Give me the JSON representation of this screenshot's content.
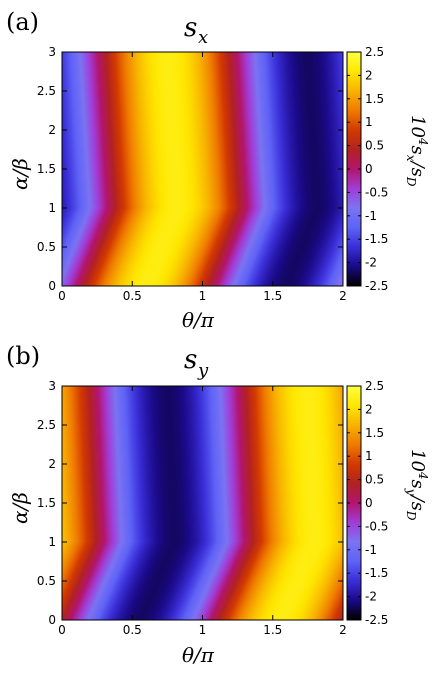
{
  "chart_data": [
    {
      "type": "heatmap",
      "panel_label": "(a)",
      "title": "s_x",
      "xlabel": "θ/π",
      "ylabel": "α/β",
      "colorbar_label": "10^4 s_x/s_D",
      "xlim": [
        0,
        2
      ],
      "ylim": [
        0,
        3
      ],
      "zlim": [
        -2.5,
        2.5
      ],
      "x_ticks": [
        "0",
        "0.5",
        "1",
        "1.5",
        "2"
      ],
      "y_ticks": [
        "0",
        "0.5",
        "1",
        "1.5",
        "2",
        "2.5",
        "3"
      ],
      "colorbar_ticks": [
        "-2.5",
        "-2",
        "-1.5",
        "-1",
        "-0.5",
        "0",
        "0.5",
        "1",
        "1.5",
        "2",
        "2.5"
      ],
      "colormap": [
        "#000000",
        "#1b0a8a",
        "#3b2fd9",
        "#5f63f7",
        "#7b74f2",
        "#a33cd7",
        "#b2156e",
        "#b22222",
        "#d33a00",
        "#f07a00",
        "#f8b200",
        "#ffe600",
        "#ffff40"
      ],
      "approx_field": "10^4 s_x/s_D ≈ 2.2·cos(π(θ/π − θ0)), θ0 ≈ 0.75 at α/β=3, 0.82 at α/β=1, shifting to 0.6 near α/β=0",
      "sample_values": [
        {
          "theta_over_pi": 0.0,
          "alpha_over_beta": 1.5,
          "value": -1.6
        },
        {
          "theta_over_pi": 0.75,
          "alpha_over_beta": 1.5,
          "value": 2.2
        },
        {
          "theta_over_pi": 1.75,
          "alpha_over_beta": 1.5,
          "value": -2.2
        },
        {
          "theta_over_pi": 0.3,
          "alpha_over_beta": 3.0,
          "value": 0.0
        },
        {
          "theta_over_pi": 1.3,
          "alpha_over_beta": 3.0,
          "value": 0.0
        },
        {
          "theta_over_pi": 0.4,
          "alpha_over_beta": 0.5,
          "value": 0.0
        },
        {
          "theta_over_pi": 1.4,
          "alpha_over_beta": 0.5,
          "value": 0.0
        }
      ]
    },
    {
      "type": "heatmap",
      "panel_label": "(b)",
      "title": "s_y",
      "xlabel": "θ/π",
      "ylabel": "α/β",
      "colorbar_label": "10^4 s_y/s_D",
      "xlim": [
        0,
        2
      ],
      "ylim": [
        0,
        3
      ],
      "zlim": [
        -2.5,
        2.5
      ],
      "x_ticks": [
        "0",
        "0.5",
        "1",
        "1.5",
        "2"
      ],
      "y_ticks": [
        "0",
        "0.5",
        "1",
        "1.5",
        "2",
        "2.5",
        "3"
      ],
      "colorbar_ticks": [
        "-2.5",
        "-2",
        "-1.5",
        "-1",
        "-0.5",
        "0",
        "0.5",
        "1",
        "1.5",
        "2",
        "2.5"
      ],
      "colormap": [
        "#000000",
        "#1b0a8a",
        "#3b2fd9",
        "#5f63f7",
        "#7b74f2",
        "#a33cd7",
        "#b2156e",
        "#b22222",
        "#d33a00",
        "#f07a00",
        "#f8b200",
        "#ffe600",
        "#ffff40"
      ],
      "approx_field": "10^4 s_y/s_D ≈ −2.2·sin(π(θ/π − θ1)), θ1 ≈ 0.25 at α/β=3, 0.3 at α/β=1, shifting toward 0.05 near α/β=0",
      "sample_values": [
        {
          "theta_over_pi": 0.0,
          "alpha_over_beta": 1.5,
          "value": 0.9
        },
        {
          "theta_over_pi": 0.75,
          "alpha_over_beta": 1.5,
          "value": -2.2
        },
        {
          "theta_over_pi": 1.75,
          "alpha_over_beta": 1.5,
          "value": 2.0
        },
        {
          "theta_over_pi": 0.25,
          "alpha_over_beta": 3.0,
          "value": 0.0
        },
        {
          "theta_over_pi": 1.25,
          "alpha_over_beta": 3.0,
          "value": 0.0
        }
      ]
    }
  ]
}
